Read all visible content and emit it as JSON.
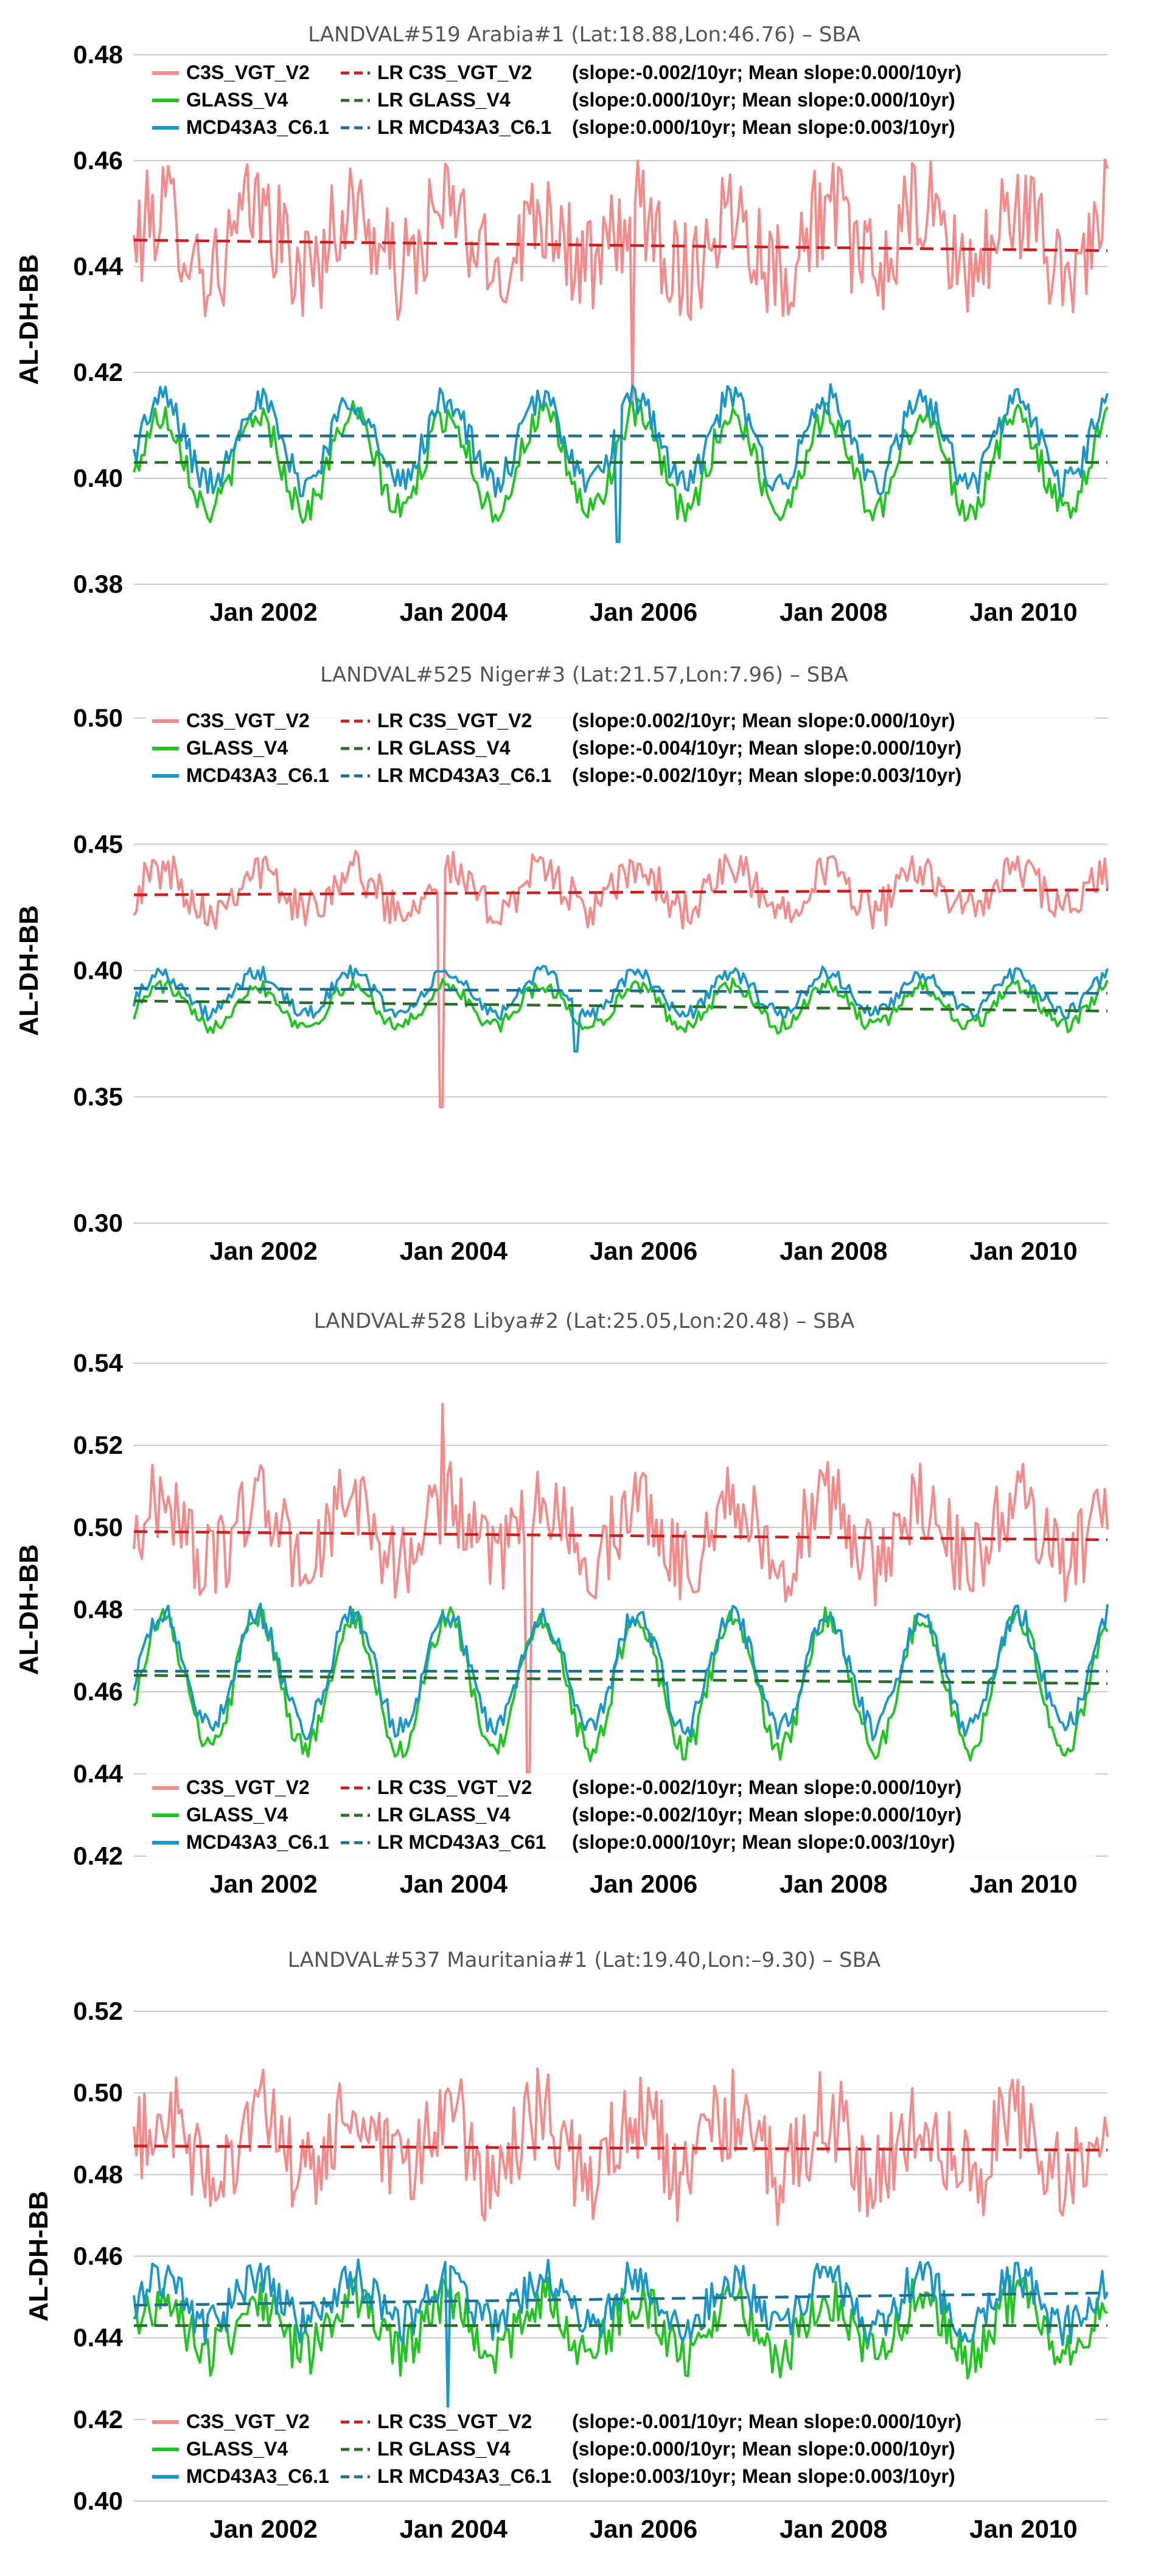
{
  "chart_data": [
    {
      "type": "line",
      "title": "LANDVAL#519 Arabia#1 (Lat:18.88,Lon:46.76) – SBA",
      "ylabel": "AL-DH-BB",
      "xlabel": "",
      "xlim": [
        2000.75,
        2011.0
      ],
      "ylim": [
        0.38,
        0.48
      ],
      "yticks": [
        "0.38",
        "0.40",
        "0.42",
        "0.44",
        "0.46",
        "0.48"
      ],
      "ytick_values": [
        0.38,
        0.4,
        0.42,
        0.44,
        0.46,
        0.48
      ],
      "xticks": [
        "Jan 2002",
        "Jan 2004",
        "Jan 2006",
        "Jan 2008",
        "Jan 2010"
      ],
      "xtick_values": [
        2002,
        2004,
        2006,
        2008,
        2010
      ],
      "legend_position": "top",
      "series": [
        {
          "name": "C3S_VGT_V2",
          "color": "#f58a8a",
          "base": 0.445,
          "seas": 0.006,
          "noise": 0.01,
          "phase": 0.2,
          "spikes": [
            [
              2006.0,
              0.414
            ]
          ]
        },
        {
          "name": "GLASS_V4",
          "color": "#22c422",
          "base": 0.403,
          "seas": 0.009,
          "noise": 0.003,
          "phase": 0.2,
          "spikes": []
        },
        {
          "name": "MCD43A3_C6.1",
          "color": "#1a96c8",
          "base": 0.407,
          "seas": 0.008,
          "noise": 0.003,
          "phase": 0.2,
          "spikes": [
            [
              2005.85,
              0.388
            ]
          ]
        }
      ],
      "trend_lines": [
        {
          "name": "LR C3S_VGT_V2",
          "color": "#cc1f1f",
          "y": [
            0.445,
            0.443
          ],
          "stats": "(slope:-0.002/10yr; Mean slope:0.000/10yr)"
        },
        {
          "name": "LR GLASS_V4",
          "color": "#2a6e2a",
          "y": [
            0.403,
            0.403
          ],
          "stats": "(slope:0.000/10yr; Mean slope:0.000/10yr)"
        },
        {
          "name": "LR MCD43A3_C6.1",
          "color": "#1f6f8f",
          "y": [
            0.408,
            0.408
          ],
          "stats": "(slope:0.000/10yr; Mean slope:0.003/10yr)"
        }
      ]
    },
    {
      "type": "line",
      "title": "LANDVAL#525 Niger#3 (Lat:21.57,Lon:7.96) – SBA",
      "ylabel": "AL-DH-BB",
      "xlabel": "",
      "xlim": [
        2000.75,
        2011.0
      ],
      "ylim": [
        0.3,
        0.5
      ],
      "yticks": [
        "0.30",
        "0.35",
        "0.40",
        "0.45",
        "0.50"
      ],
      "ytick_values": [
        0.3,
        0.35,
        0.4,
        0.45,
        0.5
      ],
      "xticks": [
        "Jan 2002",
        "Jan 2004",
        "Jan 2006",
        "Jan 2008",
        "Jan 2010"
      ],
      "xtick_values": [
        2002,
        2004,
        2006,
        2008,
        2010
      ],
      "legend_position": "top",
      "series": [
        {
          "name": "C3S_VGT_V2",
          "color": "#f58a8a",
          "base": 0.432,
          "seas": 0.008,
          "noise": 0.008,
          "phase": 0.2,
          "spikes": [
            [
              2003.98,
              0.346
            ]
          ]
        },
        {
          "name": "GLASS_V4",
          "color": "#22c422",
          "base": 0.386,
          "seas": 0.008,
          "noise": 0.003,
          "phase": 0.2,
          "spikes": []
        },
        {
          "name": "MCD43A3_C6.1",
          "color": "#1a96c8",
          "base": 0.391,
          "seas": 0.008,
          "noise": 0.003,
          "phase": 0.2,
          "spikes": [
            [
              2005.4,
              0.368
            ]
          ]
        }
      ],
      "trend_lines": [
        {
          "name": "LR C3S_VGT_V2",
          "color": "#cc1f1f",
          "y": [
            0.43,
            0.432
          ],
          "stats": "(slope:0.002/10yr; Mean slope:0.000/10yr)"
        },
        {
          "name": "LR GLASS_V4",
          "color": "#2a6e2a",
          "y": [
            0.388,
            0.384
          ],
          "stats": "(slope:-0.004/10yr; Mean slope:0.000/10yr)"
        },
        {
          "name": "LR MCD43A3_C6.1",
          "color": "#1f6f8f",
          "y": [
            0.393,
            0.391
          ],
          "stats": "(slope:-0.002/10yr; Mean slope:0.003/10yr)"
        }
      ]
    },
    {
      "type": "line",
      "title": "LANDVAL#528 Libya#2 (Lat:25.05,Lon:20.48) – SBA",
      "ylabel": "AL-DH-BB",
      "xlabel": "",
      "xlim": [
        2000.75,
        2011.0
      ],
      "ylim": [
        0.42,
        0.54
      ],
      "yticks": [
        "0.42",
        "0.44",
        "0.46",
        "0.48",
        "0.50",
        "0.52",
        "0.54"
      ],
      "ytick_values": [
        0.42,
        0.44,
        0.46,
        0.48,
        0.5,
        0.52,
        0.54
      ],
      "xticks": [
        "Jan 2002",
        "Jan 2004",
        "Jan 2006",
        "Jan 2008",
        "Jan 2010"
      ],
      "xtick_values": [
        2002,
        2004,
        2006,
        2008,
        2010
      ],
      "legend_position": "bottom",
      "series": [
        {
          "name": "C3S_VGT_V2",
          "color": "#f58a8a",
          "base": 0.499,
          "seas": 0.008,
          "noise": 0.01,
          "phase": 0.2,
          "spikes": [
            [
              2004.9,
              0.44
            ],
            [
              2004.0,
              0.53
            ]
          ]
        },
        {
          "name": "GLASS_V4",
          "color": "#22c422",
          "base": 0.462,
          "seas": 0.016,
          "noise": 0.003,
          "phase": 0.2,
          "spikes": []
        },
        {
          "name": "MCD43A3_C6.1",
          "color": "#1a96c8",
          "base": 0.465,
          "seas": 0.014,
          "noise": 0.003,
          "phase": 0.2,
          "spikes": []
        }
      ],
      "trend_lines": [
        {
          "name": "LR C3S_VGT_V2",
          "color": "#cc1f1f",
          "y": [
            0.499,
            0.497
          ],
          "stats": "(slope:-0.002/10yr; Mean slope:0.000/10yr)"
        },
        {
          "name": "LR GLASS_V4",
          "color": "#2a6e2a",
          "y": [
            0.464,
            0.462
          ],
          "stats": "(slope:-0.002/10yr; Mean slope:0.000/10yr)"
        },
        {
          "name": "LR MCD43A3_C61",
          "color": "#1f6f8f",
          "y": [
            0.465,
            0.465
          ],
          "stats": "(slope:0.000/10yr; Mean slope:0.003/10yr)"
        }
      ]
    },
    {
      "type": "line",
      "title": "LANDVAL#537 Mauritania#1 (Lat:19.40,Lon:–9.30) – SBA",
      "ylabel": "AL-DH-BB",
      "xlabel": "",
      "xlim": [
        2000.75,
        2011.0
      ],
      "ylim": [
        0.4,
        0.52
      ],
      "yticks": [
        "0.40",
        "0.42",
        "0.44",
        "0.46",
        "0.48",
        "0.50",
        "0.52"
      ],
      "ytick_values": [
        0.4,
        0.42,
        0.44,
        0.46,
        0.48,
        0.5,
        0.52
      ],
      "xticks": [
        "Jan 2002",
        "Jan 2004",
        "Jan 2006",
        "Jan 2008",
        "Jan 2010"
      ],
      "xtick_values": [
        2002,
        2004,
        2006,
        2008,
        2010
      ],
      "legend_position": "bottom",
      "series": [
        {
          "name": "C3S_VGT_V2",
          "color": "#f58a8a",
          "base": 0.487,
          "seas": 0.008,
          "noise": 0.012,
          "phase": 0.2,
          "spikes": []
        },
        {
          "name": "GLASS_V4",
          "color": "#22c422",
          "base": 0.443,
          "seas": 0.007,
          "noise": 0.006,
          "phase": 0.2,
          "spikes": []
        },
        {
          "name": "MCD43A3_C6.1",
          "color": "#1a96c8",
          "base": 0.449,
          "seas": 0.006,
          "noise": 0.005,
          "phase": 0.2,
          "spikes": [
            [
              2004.05,
              0.421
            ]
          ]
        }
      ],
      "trend_lines": [
        {
          "name": "LR C3S_VGT_V2",
          "color": "#cc1f1f",
          "y": [
            0.487,
            0.486
          ],
          "stats": "(slope:-0.001/10yr; Mean slope:0.000/10yr)"
        },
        {
          "name": "LR GLASS_V4",
          "color": "#2a6e2a",
          "y": [
            0.443,
            0.443
          ],
          "stats": "(slope:0.000/10yr; Mean slope:0.000/10yr)"
        },
        {
          "name": "LR MCD43A3_C6.1",
          "color": "#1f6f8f",
          "y": [
            0.448,
            0.451
          ],
          "stats": "(slope:0.003/10yr; Mean slope:0.003/10yr)"
        }
      ]
    }
  ]
}
